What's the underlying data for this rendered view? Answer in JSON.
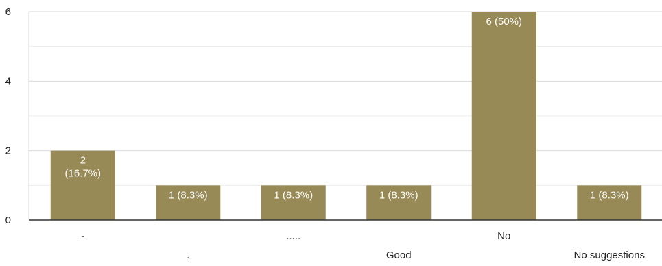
{
  "chart_data": {
    "type": "bar",
    "categories": [
      "-",
      ".",
      ".....",
      "Good",
      "No",
      "No suggestions"
    ],
    "values": [
      2,
      1,
      1,
      1,
      6,
      1
    ],
    "data_labels": [
      [
        "2",
        "(16.7%)"
      ],
      [
        "1 (8.3%)"
      ],
      [
        "1 (8.3%)"
      ],
      [
        "1 (8.3%)"
      ],
      [
        "6 (50%)"
      ],
      [
        "1 (8.3%)"
      ]
    ],
    "yticks": [
      0,
      2,
      4,
      6
    ],
    "ylim": [
      0,
      6
    ],
    "grid": true,
    "bar_color": "#978a56",
    "title": "",
    "xlabel": "",
    "ylabel": ""
  }
}
